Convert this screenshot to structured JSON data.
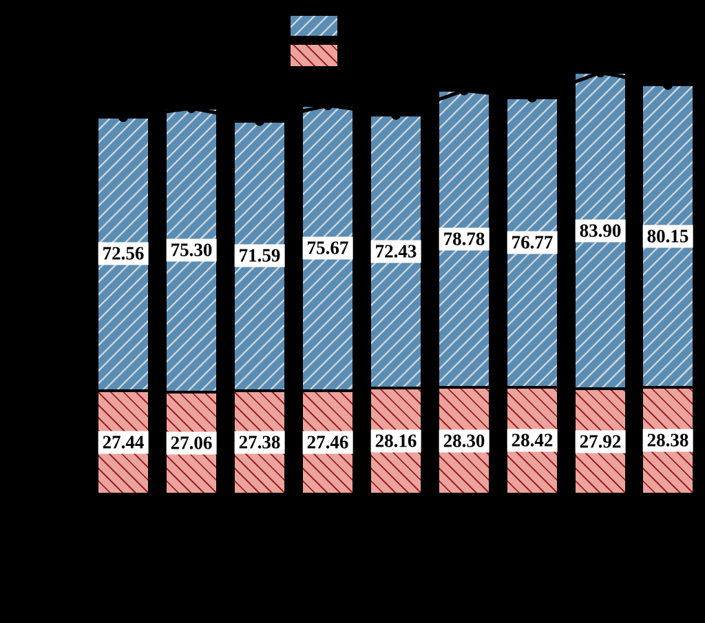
{
  "colors": {
    "background": "#000000",
    "bar_blue_fill": "#5a8db4",
    "bar_blue_hatch": "#ccd2d6",
    "bar_red_fill": "#eba39d",
    "bar_red_hatch": "#9c2024",
    "bar_border": "#000000",
    "totals_line": "#000000",
    "label_box_bg": "#ffffff",
    "label_text": "#000000"
  },
  "legend": {
    "swatches": [
      {
        "name": "blue-hatched-series",
        "fill": "#5a8db4",
        "hatch": "forward-diagonal"
      },
      {
        "name": "red-hatched-series",
        "fill": "#eba39d",
        "hatch": "backward-diagonal"
      }
    ]
  },
  "chart_data": {
    "type": "bar",
    "stacked": true,
    "orientation": "vertical",
    "n_bars": 9,
    "series": [
      {
        "name": "upper-blue-hatched-segment",
        "color": "#5a8db4",
        "hatch": "forward-diagonal",
        "values": [
          72.56,
          75.3,
          71.59,
          75.67,
          72.43,
          78.78,
          76.77,
          83.9,
          80.15
        ]
      },
      {
        "name": "lower-red-hatched-segment",
        "color": "#eba39d",
        "hatch": "backward-diagonal",
        "values": [
          27.44,
          27.06,
          27.38,
          27.46,
          28.16,
          28.3,
          28.42,
          27.92,
          28.38
        ]
      }
    ],
    "totals_line": {
      "type": "line",
      "marker": "filled-circle",
      "color": "#000000",
      "values": [
        100.0,
        102.36,
        98.97,
        103.13,
        100.59,
        107.08,
        105.19,
        111.82,
        108.53
      ]
    },
    "value_labels": {
      "visible": true,
      "format": "2-decimals",
      "style": "white-box-black-bold-serif"
    },
    "axes_text_visible": false,
    "grid": false,
    "legend_position": "top-center"
  }
}
